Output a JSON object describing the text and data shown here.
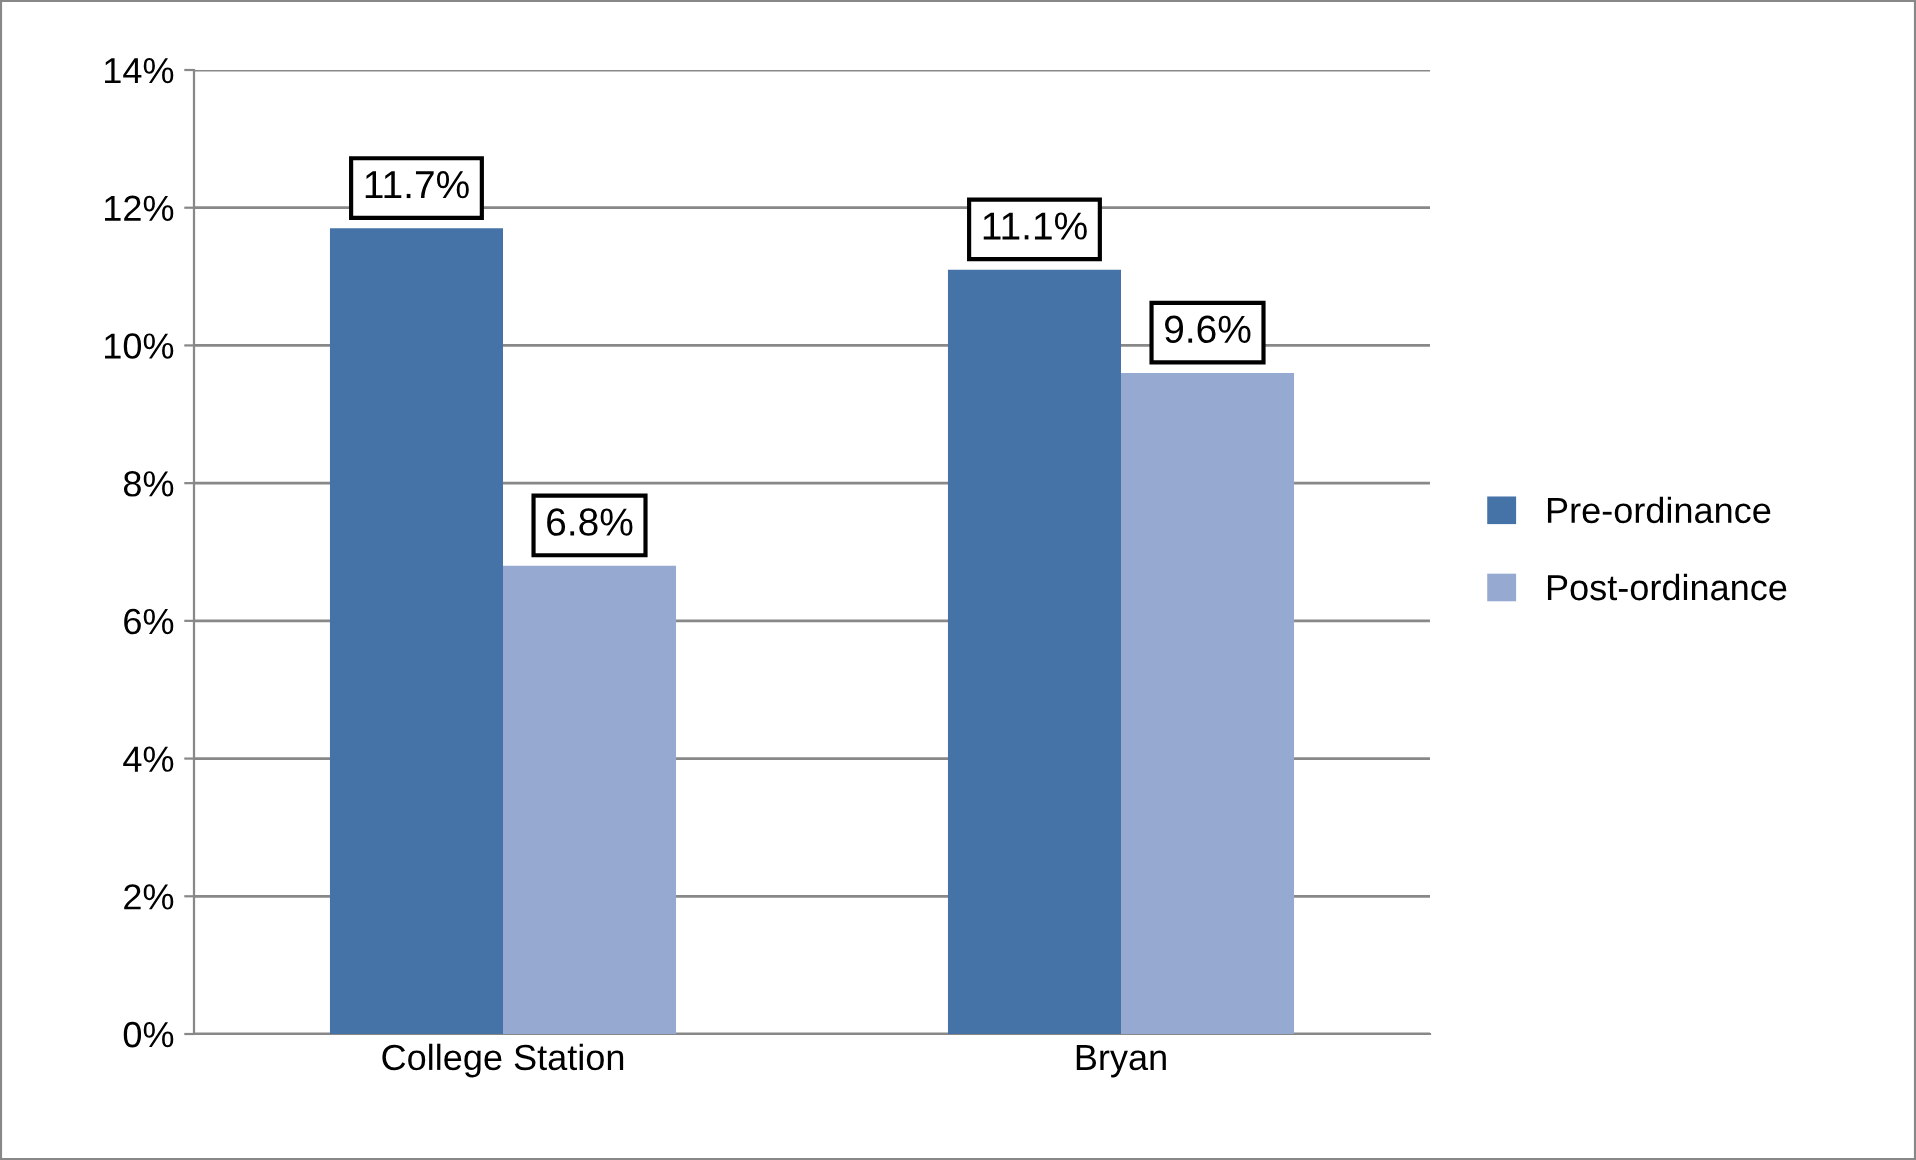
{
  "chart_data": {
    "type": "bar",
    "categories": [
      "College Station",
      "Bryan"
    ],
    "series": [
      {
        "name": "Pre-ordinance",
        "color": "#4573a7",
        "values": [
          11.7,
          11.1
        ],
        "value_labels": [
          "11.7%",
          "11.1%"
        ]
      },
      {
        "name": "Post-ordinance",
        "color": "#95a9d1",
        "values": [
          6.8,
          9.6
        ],
        "value_labels": [
          "6.8%",
          "9.6%"
        ]
      }
    ],
    "ylim": [
      0,
      14
    ],
    "yticks": [
      {
        "value": 0,
        "label": "0%"
      },
      {
        "value": 2,
        "label": "2%"
      },
      {
        "value": 4,
        "label": "4%"
      },
      {
        "value": 6,
        "label": "6%"
      },
      {
        "value": 8,
        "label": "8%"
      },
      {
        "value": 10,
        "label": "10%"
      },
      {
        "value": 12,
        "label": "12%"
      },
      {
        "value": 14,
        "label": "14%"
      }
    ],
    "grid": "y",
    "legend": "right"
  }
}
